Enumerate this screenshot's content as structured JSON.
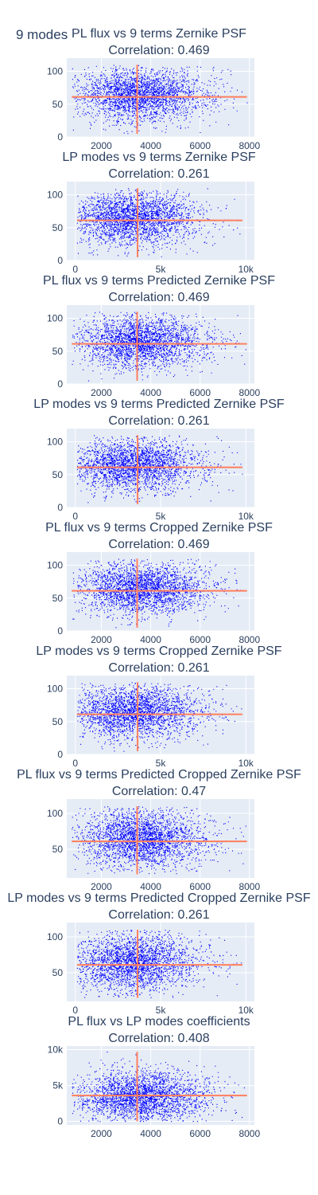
{
  "figure": {
    "title": "9 modes",
    "colors": {
      "marker": "#0000ff",
      "line": "#ff7f5e",
      "plot_bg": "#e5ecf6",
      "grid": "#ffffff",
      "text": "#2a3f5f"
    }
  },
  "chart_data": [
    {
      "type": "scatter",
      "title": "PL flux vs 9 terms Zernike PSF",
      "subtitle": "Correlation: 0.469",
      "xlim": [
        600,
        8200
      ],
      "ylim": [
        0,
        120
      ],
      "xticks": [
        2000,
        4000,
        6000,
        8000
      ],
      "xtick_labels": [
        "2000",
        "4000",
        "6000",
        "8000"
      ],
      "yticks": [
        0,
        50,
        100
      ],
      "ytick_labels": [
        "0",
        "50",
        "100"
      ],
      "x_range": [
        800,
        7900
      ],
      "y_range": [
        5,
        110
      ],
      "cloud": {
        "x_center": 3500,
        "y_center": 65,
        "x_spread": 1200,
        "y_spread": 20
      },
      "hline": {
        "y": 61,
        "x_from": 800,
        "x_to": 7900
      },
      "vline": {
        "x": 3450,
        "y_from": 5,
        "y_to": 110
      }
    },
    {
      "type": "scatter",
      "title": "LP modes vs 9 terms Zernike PSF",
      "subtitle": "Correlation: 0.261",
      "xlim": [
        -500,
        10500
      ],
      "ylim": [
        0,
        120
      ],
      "xticks": [
        0,
        5000,
        10000
      ],
      "xtick_labels": [
        "0",
        "5k",
        "10k"
      ],
      "yticks": [
        0,
        50,
        100
      ],
      "ytick_labels": [
        "0",
        "50",
        "100"
      ],
      "x_range": [
        100,
        9800
      ],
      "y_range": [
        5,
        110
      ],
      "cloud": {
        "x_center": 3200,
        "y_center": 65,
        "x_spread": 1800,
        "y_spread": 20
      },
      "hline": {
        "y": 61,
        "x_from": 100,
        "x_to": 9800
      },
      "vline": {
        "x": 3650,
        "y_from": 5,
        "y_to": 110
      }
    },
    {
      "type": "scatter",
      "title": "PL flux vs 9 terms Predicted Zernike PSF",
      "subtitle": "Correlation: 0.469",
      "xlim": [
        600,
        8200
      ],
      "ylim": [
        0,
        120
      ],
      "xticks": [
        2000,
        4000,
        6000,
        8000
      ],
      "xtick_labels": [
        "2000",
        "4000",
        "6000",
        "8000"
      ],
      "yticks": [
        0,
        50,
        100
      ],
      "ytick_labels": [
        "0",
        "50",
        "100"
      ],
      "x_range": [
        800,
        7900
      ],
      "y_range": [
        5,
        110
      ],
      "cloud": {
        "x_center": 3500,
        "y_center": 65,
        "x_spread": 1200,
        "y_spread": 20
      },
      "hline": {
        "y": 61,
        "x_from": 800,
        "x_to": 7900
      },
      "vline": {
        "x": 3450,
        "y_from": 5,
        "y_to": 110
      }
    },
    {
      "type": "scatter",
      "title": "LP modes vs 9 terms Predicted Zernike PSF",
      "subtitle": "Correlation: 0.261",
      "xlim": [
        -500,
        10500
      ],
      "ylim": [
        0,
        120
      ],
      "xticks": [
        0,
        5000,
        10000
      ],
      "xtick_labels": [
        "0",
        "5k",
        "10k"
      ],
      "yticks": [
        0,
        50,
        100
      ],
      "ytick_labels": [
        "0",
        "50",
        "100"
      ],
      "x_range": [
        100,
        9800
      ],
      "y_range": [
        5,
        110
      ],
      "cloud": {
        "x_center": 3200,
        "y_center": 65,
        "x_spread": 1800,
        "y_spread": 20
      },
      "hline": {
        "y": 61,
        "x_from": 100,
        "x_to": 9800
      },
      "vline": {
        "x": 3650,
        "y_from": 5,
        "y_to": 110
      }
    },
    {
      "type": "scatter",
      "title": "PL flux vs 9 terms Cropped Zernike PSF",
      "subtitle": "Correlation: 0.469",
      "xlim": [
        600,
        8200
      ],
      "ylim": [
        0,
        120
      ],
      "xticks": [
        2000,
        4000,
        6000,
        8000
      ],
      "xtick_labels": [
        "2000",
        "4000",
        "6000",
        "8000"
      ],
      "yticks": [
        0,
        50,
        100
      ],
      "ytick_labels": [
        "0",
        "50",
        "100"
      ],
      "x_range": [
        800,
        7900
      ],
      "y_range": [
        5,
        110
      ],
      "cloud": {
        "x_center": 3500,
        "y_center": 65,
        "x_spread": 1200,
        "y_spread": 20
      },
      "hline": {
        "y": 61,
        "x_from": 800,
        "x_to": 7900
      },
      "vline": {
        "x": 3450,
        "y_from": 5,
        "y_to": 110
      }
    },
    {
      "type": "scatter",
      "title": "LP modes vs 9 terms Cropped Zernike PSF",
      "subtitle": "Correlation: 0.261",
      "xlim": [
        -500,
        10500
      ],
      "ylim": [
        0,
        120
      ],
      "xticks": [
        0,
        5000,
        10000
      ],
      "xtick_labels": [
        "0",
        "5k",
        "10k"
      ],
      "yticks": [
        0,
        50,
        100
      ],
      "ytick_labels": [
        "0",
        "50",
        "100"
      ],
      "x_range": [
        100,
        9800
      ],
      "y_range": [
        5,
        110
      ],
      "cloud": {
        "x_center": 3200,
        "y_center": 65,
        "x_spread": 1800,
        "y_spread": 20
      },
      "hline": {
        "y": 61,
        "x_from": 100,
        "x_to": 9800
      },
      "vline": {
        "x": 3650,
        "y_from": 5,
        "y_to": 110
      }
    },
    {
      "type": "scatter",
      "title": "PL flux vs 9 terms Predicted Cropped Zernike PSF",
      "subtitle": "Correlation: 0.47",
      "xlim": [
        600,
        8200
      ],
      "ylim": [
        10,
        120
      ],
      "xticks": [
        2000,
        4000,
        6000,
        8000
      ],
      "xtick_labels": [
        "2000",
        "4000",
        "6000",
        "8000"
      ],
      "yticks": [
        50,
        100
      ],
      "ytick_labels": [
        "50",
        "100"
      ],
      "x_range": [
        800,
        7900
      ],
      "y_range": [
        15,
        110
      ],
      "cloud": {
        "x_center": 3500,
        "y_center": 65,
        "x_spread": 1200,
        "y_spread": 20
      },
      "hline": {
        "y": 61,
        "x_from": 800,
        "x_to": 7900
      },
      "vline": {
        "x": 3450,
        "y_from": 15,
        "y_to": 110
      }
    },
    {
      "type": "scatter",
      "title": "LP modes vs 9 terms Predicted Cropped Zernike PSF",
      "subtitle": "Correlation: 0.261",
      "xlim": [
        -500,
        10500
      ],
      "ylim": [
        10,
        120
      ],
      "xticks": [
        0,
        5000,
        10000
      ],
      "xtick_labels": [
        "0",
        "5k",
        "10k"
      ],
      "yticks": [
        50,
        100
      ],
      "ytick_labels": [
        "50",
        "100"
      ],
      "x_range": [
        100,
        9800
      ],
      "y_range": [
        15,
        110
      ],
      "cloud": {
        "x_center": 3200,
        "y_center": 65,
        "x_spread": 1800,
        "y_spread": 20
      },
      "hline": {
        "y": 61,
        "x_from": 100,
        "x_to": 9800
      },
      "vline": {
        "x": 3650,
        "y_from": 15,
        "y_to": 110
      }
    },
    {
      "type": "scatter",
      "title": "PL flux vs LP modes coefficients",
      "subtitle": "Correlation: 0.408",
      "xlim": [
        600,
        8200
      ],
      "ylim": [
        -500,
        10500
      ],
      "xticks": [
        2000,
        4000,
        6000,
        8000
      ],
      "xtick_labels": [
        "2000",
        "4000",
        "6000",
        "8000"
      ],
      "yticks": [
        0,
        5000,
        10000
      ],
      "ytick_labels": [
        "0",
        "5k",
        "10k"
      ],
      "x_range": [
        800,
        7900
      ],
      "y_range": [
        0,
        10000
      ],
      "cloud": {
        "x_center": 3500,
        "y_center": 3500,
        "x_spread": 1200,
        "y_spread": 1800
      },
      "hline": {
        "y": 3600,
        "x_from": 800,
        "x_to": 7900
      },
      "vline": {
        "x": 3450,
        "y_from": 0,
        "y_to": 9700
      }
    }
  ]
}
